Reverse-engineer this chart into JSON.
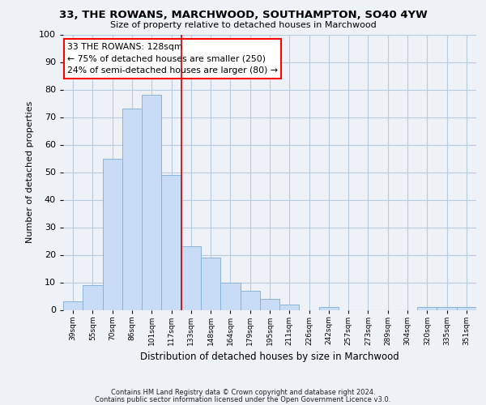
{
  "title": "33, THE ROWANS, MARCHWOOD, SOUTHAMPTON, SO40 4YW",
  "subtitle": "Size of property relative to detached houses in Marchwood",
  "xlabel": "Distribution of detached houses by size in Marchwood",
  "ylabel": "Number of detached properties",
  "bar_color": "#c8ddf5",
  "bar_edge_color": "#8ab4d8",
  "vline_color": "#cc0000",
  "vline_x": 6,
  "categories": [
    "39sqm",
    "55sqm",
    "70sqm",
    "86sqm",
    "101sqm",
    "117sqm",
    "133sqm",
    "148sqm",
    "164sqm",
    "179sqm",
    "195sqm",
    "211sqm",
    "226sqm",
    "242sqm",
    "257sqm",
    "273sqm",
    "289sqm",
    "304sqm",
    "320sqm",
    "335sqm",
    "351sqm"
  ],
  "values": [
    3,
    9,
    55,
    73,
    78,
    49,
    23,
    19,
    10,
    7,
    4,
    2,
    0,
    1,
    0,
    0,
    0,
    0,
    1,
    1,
    1
  ],
  "ylim": [
    0,
    100
  ],
  "yticks": [
    0,
    10,
    20,
    30,
    40,
    50,
    60,
    70,
    80,
    90,
    100
  ],
  "annotation_title": "33 THE ROWANS: 128sqm",
  "annotation_line1": "← 75% of detached houses are smaller (250)",
  "annotation_line2": "24% of semi-detached houses are larger (80) →",
  "footer_line1": "Contains HM Land Registry data © Crown copyright and database right 2024.",
  "footer_line2": "Contains public sector information licensed under the Open Government Licence v3.0.",
  "bg_color": "#eef2f7",
  "plot_bg_color": "#eef2f7",
  "grid_color": "#b8cce0"
}
